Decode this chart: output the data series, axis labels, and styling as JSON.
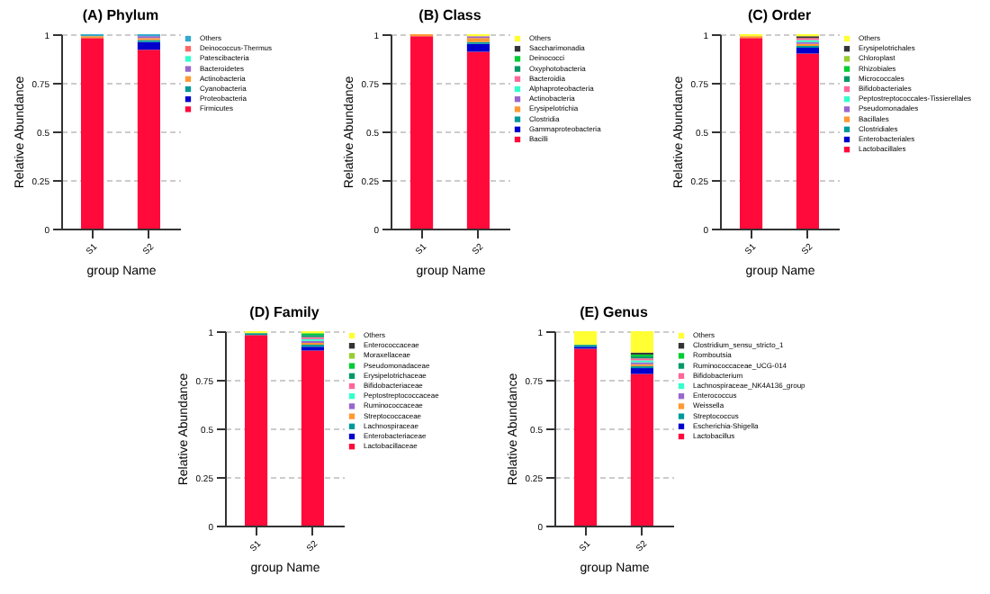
{
  "chart_data": [
    {
      "type": "bar",
      "stacked": true,
      "title": "(A) Phylum",
      "xlabel": "group Name",
      "ylabel": "Relative Abundance",
      "categories": [
        "S1",
        "S2"
      ],
      "ylim": [
        0,
        1
      ],
      "yticks": [
        0,
        0.25,
        0.5,
        0.75,
        1
      ],
      "grid": "y",
      "legend": "right",
      "series": [
        {
          "name": "Firmicutes",
          "color": "#ff0a3a",
          "values": [
            0.98,
            0.92
          ]
        },
        {
          "name": "Proteobacteria",
          "color": "#0000cc",
          "values": [
            0,
            0.04
          ]
        },
        {
          "name": "Cyanobacteria",
          "color": "#009999",
          "values": [
            0,
            0.01
          ]
        },
        {
          "name": "Actinobacteria",
          "color": "#ff9933",
          "values": [
            0.01,
            0.01
          ]
        },
        {
          "name": "Bacteroidetes",
          "color": "#9966cc",
          "values": [
            0,
            0.01
          ]
        },
        {
          "name": "Patescibacteria",
          "color": "#33ffcc",
          "values": [
            0,
            0
          ]
        },
        {
          "name": "Deinococcus-Thermus",
          "color": "#ff6666",
          "values": [
            0,
            0
          ]
        },
        {
          "name": "Others",
          "color": "#33aacc",
          "values": [
            0.01,
            0.01
          ]
        }
      ]
    },
    {
      "type": "bar",
      "stacked": true,
      "title": "(B) Class",
      "xlabel": "group Name",
      "ylabel": "Relative Abundance",
      "categories": [
        "S1",
        "S2"
      ],
      "ylim": [
        0,
        1
      ],
      "yticks": [
        0,
        0.25,
        0.5,
        0.75,
        1
      ],
      "grid": "y",
      "legend": "right",
      "series": [
        {
          "name": "Bacilli",
          "color": "#ff0a3a",
          "values": [
            0.99,
            0.91
          ]
        },
        {
          "name": "Gammaproteobacteria",
          "color": "#0000cc",
          "values": [
            0,
            0.04
          ]
        },
        {
          "name": "Clostridia",
          "color": "#009999",
          "values": [
            0,
            0.01
          ]
        },
        {
          "name": "Erysipelotrichia",
          "color": "#ff9933",
          "values": [
            0.01,
            0.02
          ]
        },
        {
          "name": "Actinobacteria",
          "color": "#9966cc",
          "values": [
            0,
            0.01
          ]
        },
        {
          "name": "Alphaproteobacteria",
          "color": "#33ffcc",
          "values": [
            0,
            0
          ]
        },
        {
          "name": "Bacteroidia",
          "color": "#ff6699",
          "values": [
            0,
            0
          ]
        },
        {
          "name": "Oxyphotobacteria",
          "color": "#009966",
          "values": [
            0,
            0
          ]
        },
        {
          "name": "Deinococci",
          "color": "#00cc33",
          "values": [
            0,
            0
          ]
        },
        {
          "name": "Saccharimonadia",
          "color": "#333333",
          "values": [
            0,
            0
          ]
        },
        {
          "name": "Others",
          "color": "#ffff33",
          "values": [
            0,
            0.01
          ]
        }
      ]
    },
    {
      "type": "bar",
      "stacked": true,
      "title": "(C) Order",
      "xlabel": "group Name",
      "ylabel": "Relative Abundance",
      "categories": [
        "S1",
        "S2"
      ],
      "ylim": [
        0,
        1
      ],
      "yticks": [
        0,
        0.25,
        0.5,
        0.75,
        1
      ],
      "grid": "y",
      "legend": "right",
      "series": [
        {
          "name": "Lactobacillales",
          "color": "#ff0a3a",
          "values": [
            0.98,
            0.9
          ]
        },
        {
          "name": "Enterobacteriales",
          "color": "#0000cc",
          "values": [
            0,
            0.03
          ]
        },
        {
          "name": "Clostridiales",
          "color": "#009999",
          "values": [
            0,
            0.01
          ]
        },
        {
          "name": "Bacillales",
          "color": "#ff9933",
          "values": [
            0.01,
            0.01
          ]
        },
        {
          "name": "Pseudomonadales",
          "color": "#9966cc",
          "values": [
            0,
            0.01
          ]
        },
        {
          "name": "Peptostreptococcales-Tissierellales",
          "color": "#33ffcc",
          "values": [
            0,
            0.01
          ]
        },
        {
          "name": "Bifidobacteriales",
          "color": "#ff6699",
          "values": [
            0,
            0.01
          ]
        },
        {
          "name": "Micrococcales",
          "color": "#009966",
          "values": [
            0,
            0
          ]
        },
        {
          "name": "Rhizobiales",
          "color": "#00cc33",
          "values": [
            0,
            0
          ]
        },
        {
          "name": "Chloroplast",
          "color": "#99cc33",
          "values": [
            0,
            0
          ]
        },
        {
          "name": "Erysipelotrichales",
          "color": "#333333",
          "values": [
            0,
            0.01
          ]
        },
        {
          "name": "Others",
          "color": "#ffff33",
          "values": [
            0.01,
            0.01
          ]
        }
      ]
    },
    {
      "type": "bar",
      "stacked": true,
      "title": "(D) Family",
      "xlabel": "group Name",
      "ylabel": "Relative Abundance",
      "categories": [
        "S1",
        "S2"
      ],
      "ylim": [
        0,
        1
      ],
      "yticks": [
        0,
        0.25,
        0.5,
        0.75,
        1
      ],
      "grid": "y",
      "legend": "right",
      "series": [
        {
          "name": "Lactobacillaceae",
          "color": "#ff0a3a",
          "values": [
            0.98,
            0.9
          ]
        },
        {
          "name": "Enterobacteriaceae",
          "color": "#0000cc",
          "values": [
            0,
            0.02
          ]
        },
        {
          "name": "Lachnospiraceae",
          "color": "#009999",
          "values": [
            0.01,
            0.01
          ]
        },
        {
          "name": "Streptococcaceae",
          "color": "#ff9933",
          "values": [
            0,
            0.01
          ]
        },
        {
          "name": "Ruminococcaceae",
          "color": "#9966cc",
          "values": [
            0,
            0.01
          ]
        },
        {
          "name": "Peptostreptococcaceae",
          "color": "#33ffcc",
          "values": [
            0,
            0.01
          ]
        },
        {
          "name": "Bifidobacteriaceae",
          "color": "#ff6699",
          "values": [
            0,
            0.01
          ]
        },
        {
          "name": "Erysipelotrichaceae",
          "color": "#009966",
          "values": [
            0,
            0.01
          ]
        },
        {
          "name": "Pseudomonadaceae",
          "color": "#00cc33",
          "values": [
            0,
            0.01
          ]
        },
        {
          "name": "Moraxellaceae",
          "color": "#99cc33",
          "values": [
            0,
            0
          ]
        },
        {
          "name": "Enterococcaceae",
          "color": "#333333",
          "values": [
            0,
            0
          ]
        },
        {
          "name": "Others",
          "color": "#ffff33",
          "values": [
            0.01,
            0.01
          ]
        }
      ]
    },
    {
      "type": "bar",
      "stacked": true,
      "title": "(E) Genus",
      "xlabel": "group Name",
      "ylabel": "Relative Abundance",
      "categories": [
        "S1",
        "S2"
      ],
      "ylim": [
        0,
        1
      ],
      "yticks": [
        0,
        0.25,
        0.5,
        0.75,
        1
      ],
      "grid": "y",
      "legend": "right",
      "series": [
        {
          "name": "Lactobacillus",
          "color": "#ff0a3a",
          "values": [
            0.91,
            0.78
          ]
        },
        {
          "name": "Escherichia-Shigella",
          "color": "#0000cc",
          "values": [
            0.01,
            0.03
          ]
        },
        {
          "name": "Streptococcus",
          "color": "#009999",
          "values": [
            0.01,
            0.01
          ]
        },
        {
          "name": "Weissella",
          "color": "#ff9933",
          "values": [
            0,
            0.01
          ]
        },
        {
          "name": "Enterococcus",
          "color": "#9966cc",
          "values": [
            0,
            0.01
          ]
        },
        {
          "name": "Lachnospiraceae_NK4A136_group",
          "color": "#33ffcc",
          "values": [
            0,
            0.01
          ]
        },
        {
          "name": "Bifidobacterium",
          "color": "#ff6699",
          "values": [
            0,
            0.01
          ]
        },
        {
          "name": "Ruminococcaceae_UCG-014",
          "color": "#009966",
          "values": [
            0,
            0.01
          ]
        },
        {
          "name": "Romboutsia",
          "color": "#00cc33",
          "values": [
            0,
            0.01
          ]
        },
        {
          "name": "Clostridium_sensu_stricto_1",
          "color": "#333333",
          "values": [
            0,
            0.01
          ]
        },
        {
          "name": "Others",
          "color": "#ffff33",
          "values": [
            0.07,
            0.11
          ]
        }
      ]
    }
  ]
}
